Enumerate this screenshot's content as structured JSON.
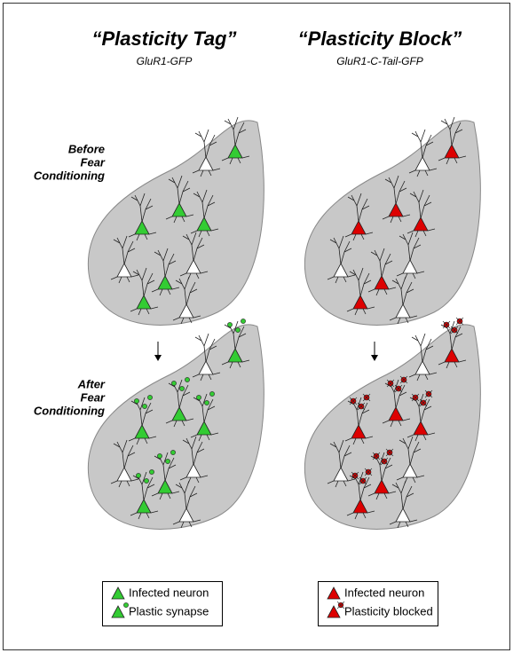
{
  "columns": [
    {
      "title": "“Plasticity Tag”",
      "subtitle": "GluR1-GFP",
      "legend": [
        "Infected neuron",
        "Plastic synapse"
      ]
    },
    {
      "title": "“Plasticity Block”",
      "subtitle": "GluR1-C-Tail-GFP",
      "legend": [
        "Infected neuron",
        "Plasticity blocked"
      ]
    }
  ],
  "row_labels": [
    [
      "Before",
      "Fear",
      "Conditioning"
    ],
    [
      "After",
      "Fear",
      "Conditioning"
    ]
  ]
}
